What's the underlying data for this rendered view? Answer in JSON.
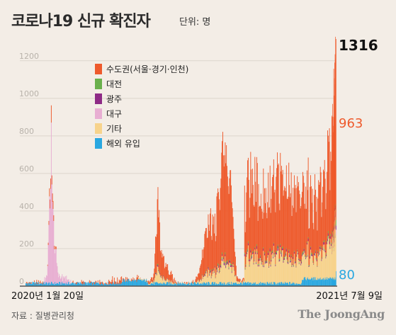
{
  "header": {
    "title": "코로나19 신규 확진자",
    "unit": "단위: 명"
  },
  "footer": {
    "source": "자료 : 질병관리청",
    "brand": "The JoongAng"
  },
  "chart_data": {
    "type": "bar",
    "stacked": true,
    "ylim": [
      0,
      1350
    ],
    "yticks": [
      0,
      200,
      400,
      600,
      800,
      1000,
      1200
    ],
    "x_start_label": "2020년 1월 20일",
    "x_end_label": "2021년 7월 9일",
    "series": [
      {
        "name": "수도권(서울·경기·인천)",
        "color": "#ee5a2c"
      },
      {
        "name": "대전",
        "color": "#6ab04c"
      },
      {
        "name": "광주",
        "color": "#8e2a86"
      },
      {
        "name": "대구",
        "color": "#e8aed2"
      },
      {
        "name": "기타",
        "color": "#f7d38c"
      },
      {
        "name": "해외 유입",
        "color": "#29a7e0"
      }
    ],
    "annotations": [
      {
        "text": "1316",
        "value": 1316,
        "color": "#111111"
      },
      {
        "text": "963",
        "value": 963,
        "color": "#ee5a2c"
      },
      {
        "text": "80",
        "value": 80,
        "color": "#29a7e0"
      }
    ]
  }
}
